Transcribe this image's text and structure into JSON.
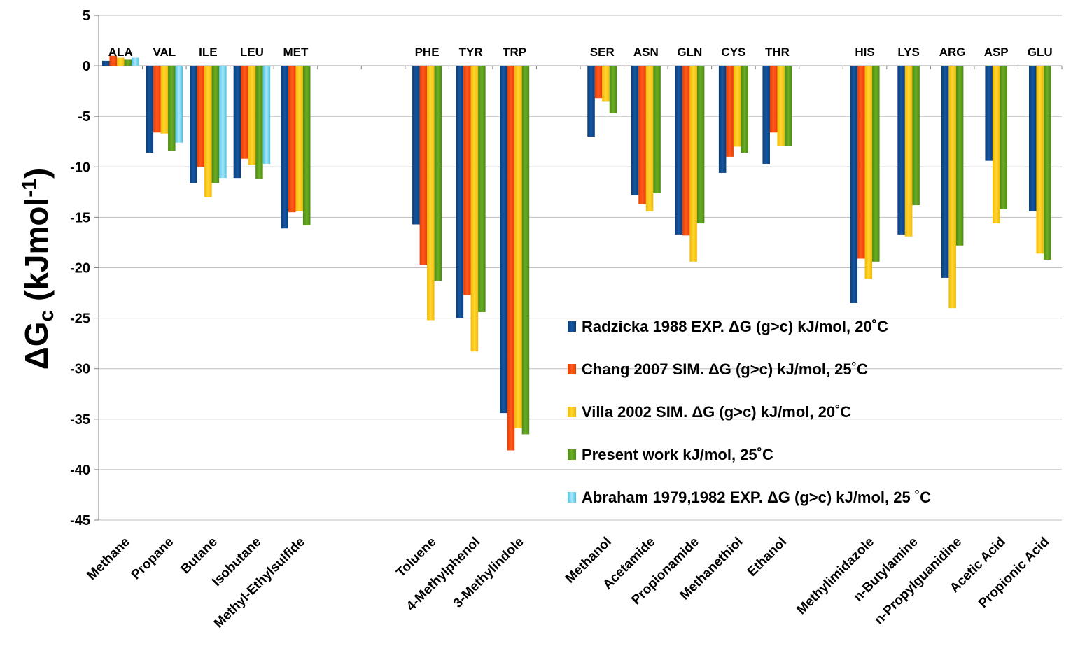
{
  "chart_data": {
    "type": "bar",
    "title": "",
    "xlabel": "",
    "ylabel": "ΔGc (kJmol-1)",
    "ylabel_parts": {
      "delta": "Δ",
      "main": "G",
      "sub": "c",
      "unit": "(kJmol",
      "sup": "-1",
      "close": ")"
    },
    "ylim": [
      -45,
      5
    ],
    "yticks": [
      5,
      0,
      -5,
      -10,
      -15,
      -20,
      -25,
      -30,
      -35,
      -40,
      -45
    ],
    "grid": true,
    "legend_position": "bottom-right inside plot",
    "categories": [
      "Methane",
      "Propane",
      "Butane",
      "Isobutane",
      "Methyl-Ethylsulfide",
      "",
      "",
      "Toluene",
      "4-Methylphenol",
      "3-Methylindole",
      "",
      "Methanol",
      "Acetamide",
      "Propionamide",
      "Methanethiol",
      "Ethanol",
      "",
      "Methylimidazole",
      "n-Butylamine",
      "n-Propylguanidine",
      "Acetic Acid",
      "Propionic Acid"
    ],
    "amino_acids": [
      "ALA",
      "VAL",
      "ILE",
      "LEU",
      "MET",
      "",
      "",
      "PHE",
      "TYR",
      "TRP",
      "",
      "SER",
      "ASN",
      "GLN",
      "CYS",
      "THR",
      "",
      "HIS",
      "LYS",
      "ARG",
      "ASP",
      "GLU"
    ],
    "series": [
      {
        "name": "Radzicka 1988 EXP. ΔG (g>c) kJ/mol, 20˚C",
        "color": "#0e4a8c",
        "values": [
          0.5,
          -8.6,
          -11.6,
          -11.1,
          -16.1,
          null,
          null,
          -15.7,
          -25.0,
          -34.4,
          null,
          -7.0,
          -12.8,
          -16.7,
          -10.6,
          -9.7,
          null,
          -23.5,
          -16.7,
          -21.0,
          -9.4,
          -14.4
        ]
      },
      {
        "name": "Chang 2007 SIM. ΔG (g>c) kJ/mol, 25˚C",
        "color": "#ff4a0d",
        "values": [
          1.0,
          -6.6,
          -10.0,
          -9.2,
          -14.5,
          null,
          null,
          -19.7,
          -22.7,
          -38.1,
          null,
          -3.2,
          -13.7,
          -16.8,
          -9.0,
          -6.6,
          null,
          -19.1,
          null,
          null,
          null,
          null
        ]
      },
      {
        "name": "Villa 2002 SIM. ΔG (g>c) kJ/mol, 20˚C",
        "color": "#ffcc1a",
        "values": [
          0.8,
          -6.7,
          -13.0,
          -9.8,
          -14.4,
          null,
          null,
          -25.2,
          -28.3,
          -35.9,
          null,
          -3.5,
          -14.4,
          -19.4,
          -8.0,
          -7.9,
          null,
          -21.1,
          -16.9,
          -24.0,
          -15.6,
          -18.6
        ]
      },
      {
        "name": "Present work kJ/mol, 25˚C",
        "color": "#5e9e1e",
        "values": [
          0.6,
          -8.4,
          -11.6,
          -11.2,
          -15.8,
          null,
          null,
          -21.3,
          -24.4,
          -36.5,
          null,
          -4.7,
          -12.6,
          -15.6,
          -8.6,
          -7.9,
          null,
          -19.4,
          -13.8,
          -17.8,
          -14.2,
          -19.2
        ]
      },
      {
        "name": "Abraham 1979,1982 EXP. ΔG (g>c) kJ/mol, 25 ˚C",
        "color": "#7fd8f0",
        "values": [
          0.8,
          -7.6,
          -11.1,
          -9.7,
          null,
          null,
          null,
          null,
          null,
          null,
          null,
          null,
          null,
          null,
          null,
          null,
          null,
          null,
          null,
          null,
          null,
          null
        ]
      }
    ]
  }
}
